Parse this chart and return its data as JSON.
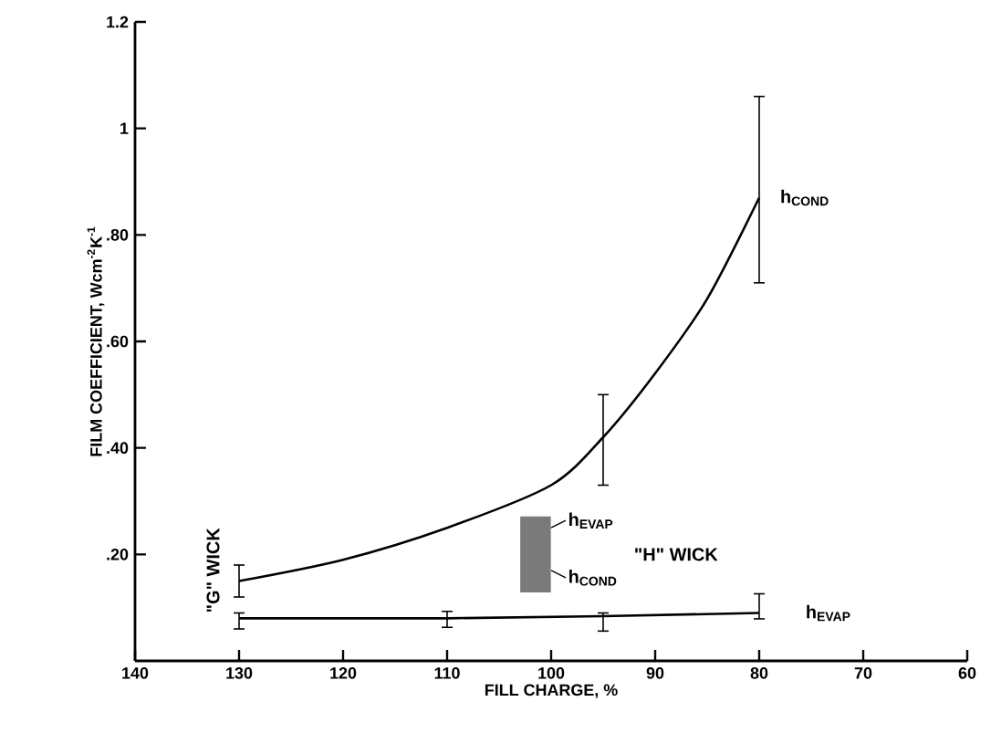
{
  "chart_data": {
    "type": "line",
    "xlabel": "FILL CHARGE, %",
    "ylabel": "FILM COEFFICIENT, Wcm$^{-2}$K$^{-1}$",
    "xlim": [
      140,
      60
    ],
    "xticks": [
      140,
      130,
      120,
      110,
      100,
      90,
      80,
      70,
      60
    ],
    "ylim": [
      0,
      1.2
    ],
    "yticks": [
      {
        "value": 0.2,
        "label": ".20"
      },
      {
        "value": 0.4,
        "label": ".40"
      },
      {
        "value": 0.6,
        "label": ".60"
      },
      {
        "value": 0.8,
        "label": ".80"
      },
      1,
      1.2
    ],
    "grid": false,
    "marker": "none",
    "line_style": "solid",
    "series": [
      {
        "name": "h$_{COND}$",
        "color": "#000000",
        "x": [
          130,
          120,
          110,
          100,
          95,
          90,
          85,
          80
        ],
        "values": [
          0.15,
          0.19,
          0.25,
          0.33,
          0.42,
          0.54,
          0.68,
          0.87
        ],
        "errors": [
          [
            0.12,
            0.18
          ],
          null,
          null,
          null,
          [
            0.33,
            0.5
          ],
          null,
          null,
          [
            0.71,
            1.06
          ]
        ]
      },
      {
        "name": "h$_{EVAP}$",
        "color": "#000000",
        "x": [
          130,
          110,
          95,
          80
        ],
        "values": [
          0.08,
          0.08,
          0.084,
          0.09
        ],
        "errors": [
          [
            0.06,
            0.09
          ],
          [
            0.063,
            0.093
          ],
          [
            0.056,
            0.09
          ],
          [
            0.079,
            0.126
          ]
        ]
      },
      {
        "type": "bar",
        "color": "#7a7a7a",
        "x": [
          101.5
        ],
        "base": [
          0.13
        ],
        "values": [
          0.14
        ]
      }
    ],
    "annotations": [
      {
        "text": "h$_{EVAP}$",
        "x": 100,
        "y": 0.25
      },
      {
        "text": "h$_{COND}$",
        "x": 100,
        "y": 0.17
      },
      "\"H\" WICK",
      "\"G\" WICK"
    ]
  }
}
